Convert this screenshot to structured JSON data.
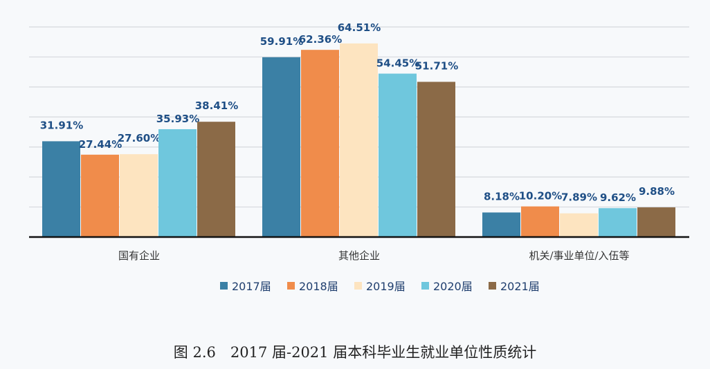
{
  "chart_data": {
    "type": "bar",
    "title": "",
    "caption": "图 2.6　2017 届-2021 届本科毕业生就业单位性质统计",
    "categories": [
      "国有企业",
      "其他企业",
      "机关/事业单位/入伍等"
    ],
    "series": [
      {
        "name": "2017届",
        "color": "#3b80a5",
        "values": [
          31.91,
          59.91,
          8.18
        ]
      },
      {
        "name": "2018届",
        "color": "#f08c4b",
        "values": [
          27.44,
          62.36,
          10.2
        ]
      },
      {
        "name": "2019届",
        "color": "#fde4c0",
        "values": [
          27.6,
          64.51,
          7.89
        ]
      },
      {
        "name": "2020届",
        "color": "#6fc7dd",
        "values": [
          35.93,
          54.45,
          9.62
        ]
      },
      {
        "name": "2021届",
        "color": "#8b6a47",
        "values": [
          38.41,
          51.71,
          9.88
        ]
      }
    ],
    "value_suffix": "%",
    "ylim": [
      0,
      70
    ],
    "ytick_step": 10,
    "grid": true,
    "legend_position": "bottom",
    "label_color": "#1f4f86"
  }
}
